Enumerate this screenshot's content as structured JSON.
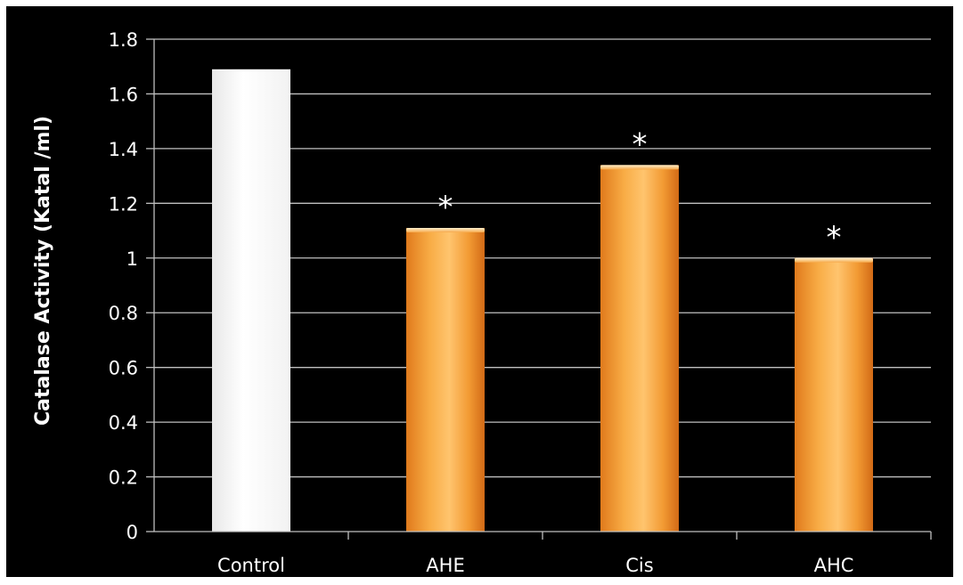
{
  "chart_data": {
    "type": "bar",
    "title": "",
    "xlabel": "",
    "ylabel": "Catalase Activity (Katal /ml)",
    "categories": [
      "Control",
      "AHE",
      "Cis",
      "AHC"
    ],
    "values": [
      1.69,
      1.11,
      1.34,
      1.0
    ],
    "annotations": [
      "",
      "*",
      "*",
      "*"
    ],
    "ylim": [
      0,
      1.8
    ],
    "yticks": [
      0,
      0.2,
      0.4,
      0.6,
      0.8,
      1,
      1.2,
      1.4,
      1.6,
      1.8
    ],
    "ytick_labels": [
      "0",
      "0.2",
      "0.4",
      "0.6",
      "0.8",
      "1",
      "1.2",
      "1.4",
      "1.6",
      "1.8"
    ],
    "grid": true,
    "legend": "none",
    "colors": {
      "background": "#000000",
      "grid": "#bfbfbf",
      "axis": "#bfbfbf",
      "text": "#ffffff",
      "control_bar": "#ffffff",
      "treatment_bar": "#f39a2c",
      "treatment_bar_highlight": "#ffd08a",
      "treatment_bar_shadow": "#d9741a"
    }
  }
}
